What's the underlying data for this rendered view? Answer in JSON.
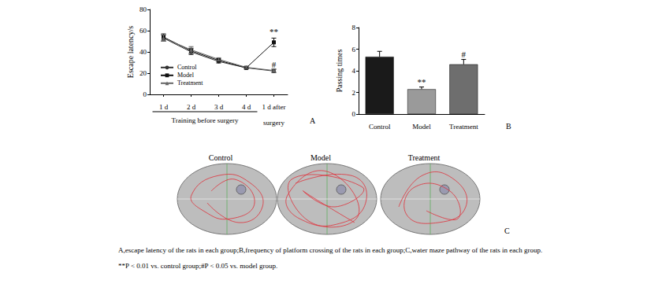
{
  "chart_data": [
    {
      "panel": "A",
      "type": "line",
      "y_label": "Escape latency/s",
      "categories": [
        "1 d",
        "2 d",
        "3 d",
        "4 d",
        "1 d after\nsurgery"
      ],
      "x_group_label": "Training before surgery",
      "ylim": [
        0,
        80
      ],
      "yticks": [
        0,
        20,
        40,
        60,
        80
      ],
      "legend": "lower left",
      "series": [
        {
          "name": "Control",
          "color": "#333333",
          "marker": "circle",
          "values": [
            53,
            40,
            31,
            25,
            22
          ],
          "errors": [
            3,
            2.5,
            1.5,
            1,
            1.5
          ]
        },
        {
          "name": "Model",
          "color": "#111111",
          "marker": "square",
          "values": [
            54,
            41,
            32,
            25,
            49
          ],
          "errors": [
            3,
            2.5,
            1.5,
            1,
            4
          ]
        },
        {
          "name": "Treatment",
          "color": "#666666",
          "marker": "triangle",
          "values": [
            53,
            42,
            33,
            25.5,
            22.5
          ],
          "errors": [
            3,
            3,
            1.5,
            1,
            1.5
          ]
        }
      ],
      "annotations": [
        {
          "text": "**",
          "category": "1 d after\nsurgery",
          "y": 59
        },
        {
          "text": "#",
          "category": "1 d after\nsurgery",
          "y": 28
        }
      ]
    },
    {
      "panel": "B",
      "type": "bar",
      "y_label": "Passing times",
      "categories": [
        "Control",
        "Model",
        "Treatment"
      ],
      "values": [
        5.3,
        2.3,
        4.6
      ],
      "errors": [
        0.5,
        0.2,
        0.45
      ],
      "colors": [
        "#1a1a1a",
        "#9a9a9a",
        "#6e6e6e"
      ],
      "ylim": [
        0,
        8
      ],
      "yticks": [
        0,
        2,
        4,
        6,
        8
      ],
      "annotations": [
        {
          "text": "**",
          "category": "Model",
          "y": 2.95
        },
        {
          "text": "#",
          "category": "Treatment",
          "y": 5.5
        }
      ]
    }
  ],
  "panel_c": {
    "panel": "C",
    "labels": [
      "Control",
      "Model",
      "Treatment"
    ]
  },
  "caption": [
    "A,escape latency of the rats in each group;B,frequency of platform crossing of the rats in each group;C,water maze pathway of the rats in each group.",
    "**P < 0.01 vs. control group;#P < 0.05 vs. model group."
  ]
}
